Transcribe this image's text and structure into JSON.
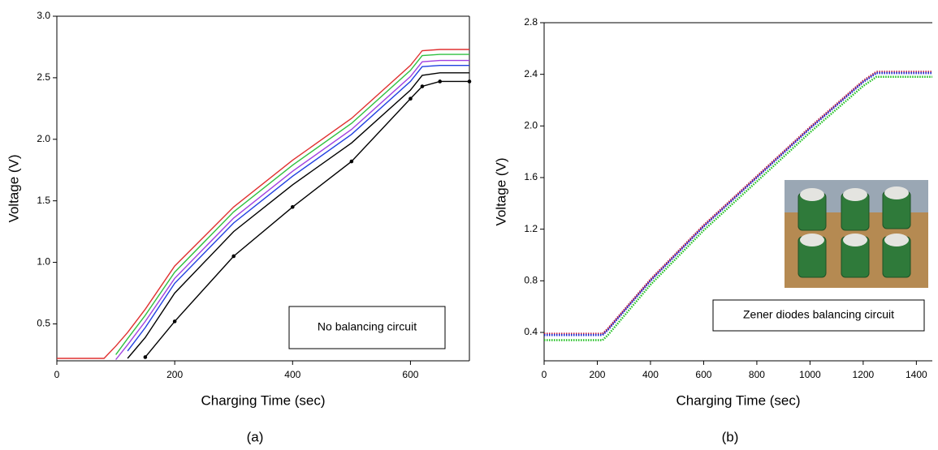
{
  "chart_data": [
    {
      "type": "line",
      "caption": "(a)",
      "x_label": "Charging Time (sec)",
      "y_label": "Voltage (V)",
      "annotation": "No balancing circuit",
      "x": [
        0,
        80,
        100,
        120,
        150,
        200,
        300,
        400,
        500,
        600,
        620,
        650,
        700
      ],
      "xlim": [
        0,
        700
      ],
      "xticks": [
        0,
        200,
        400,
        600
      ],
      "ylim": [
        0.2,
        3.0
      ],
      "yticks": [
        0.5,
        {
          "value": 1.0,
          "label": "1.0"
        },
        1.5,
        {
          "value": 2.0,
          "label": "2.0"
        },
        2.5,
        {
          "value": 3.0,
          "label": "3.0"
        }
      ],
      "frame": true,
      "series": [
        {
          "color": "#e03030",
          "values": [
            0.22,
            0.22,
            0.32,
            0.43,
            0.62,
            0.97,
            1.45,
            1.83,
            2.17,
            2.6,
            2.72,
            2.73,
            2.73
          ]
        },
        {
          "color": "#30c040",
          "values": [
            null,
            null,
            0.25,
            0.38,
            0.57,
            0.92,
            1.41,
            1.79,
            2.13,
            2.56,
            2.68,
            2.69,
            2.69
          ]
        },
        {
          "color": "#a040e0",
          "values": [
            null,
            null,
            0.21,
            0.33,
            0.52,
            0.87,
            1.36,
            1.74,
            2.08,
            2.51,
            2.63,
            2.64,
            2.64
          ]
        },
        {
          "color": "#2040e0",
          "values": [
            null,
            null,
            null,
            0.28,
            0.47,
            0.83,
            1.32,
            1.7,
            2.04,
            2.47,
            2.59,
            2.6,
            2.6
          ]
        },
        {
          "color": "#000000",
          "values": [
            null,
            null,
            null,
            0.22,
            0.39,
            0.75,
            1.25,
            1.63,
            1.97,
            2.4,
            2.52,
            2.54,
            2.54
          ]
        },
        {
          "color": "#000000",
          "marker": true,
          "values": [
            null,
            null,
            null,
            null,
            0.23,
            0.52,
            1.05,
            1.45,
            1.82,
            2.33,
            2.43,
            2.47,
            2.47
          ]
        }
      ]
    },
    {
      "type": "line",
      "caption": "(b)",
      "x_label": "Charging Time (sec)",
      "y_label": "Voltage (V)",
      "annotation": "Zener diodes balancing circuit",
      "x": [
        0,
        220,
        240,
        400,
        600,
        800,
        1000,
        1200,
        1250,
        1460
      ],
      "xlim": [
        0,
        1460
      ],
      "xticks": [
        0,
        200,
        400,
        600,
        800,
        1000,
        1200,
        1400
      ],
      "ylim": [
        0.18,
        2.8
      ],
      "yticks": [
        0.4,
        0.8,
        1.2,
        1.6,
        {
          "value": 2.0,
          "label": "2.0"
        },
        2.4,
        2.8
      ],
      "frame": false,
      "line_style": "dotted",
      "series": [
        {
          "color": "#c02040",
          "values": [
            0.39,
            0.39,
            0.43,
            0.81,
            1.23,
            1.61,
            1.99,
            2.35,
            2.42,
            2.42
          ]
        },
        {
          "color": "#1a2ad0",
          "values": [
            0.38,
            0.38,
            0.42,
            0.8,
            1.22,
            1.6,
            1.98,
            2.34,
            2.41,
            2.41
          ]
        },
        {
          "color": "#20c020",
          "values": [
            0.34,
            0.34,
            0.38,
            0.77,
            1.19,
            1.57,
            1.95,
            2.31,
            2.38,
            2.38
          ]
        }
      ]
    }
  ]
}
